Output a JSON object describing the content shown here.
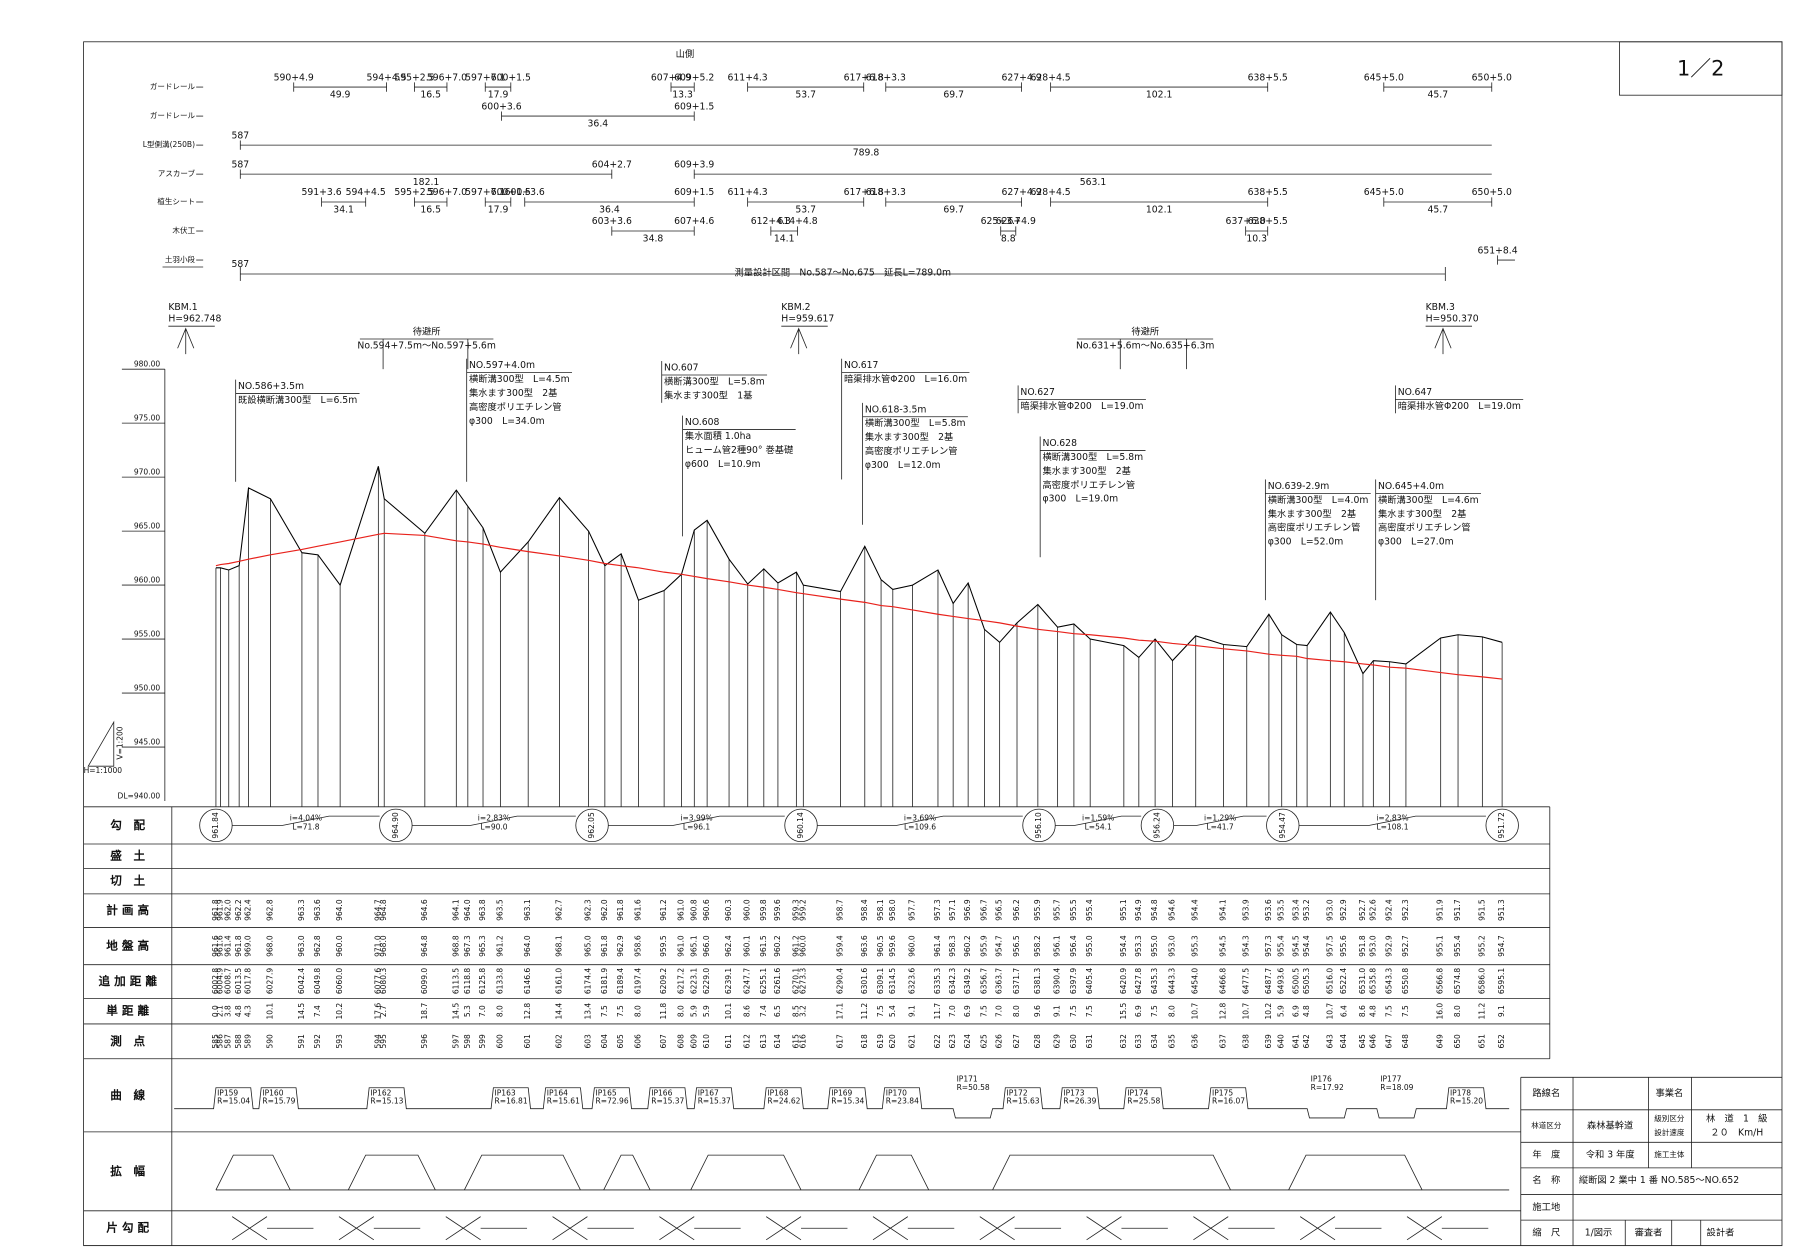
{
  "sheet": "1／2",
  "top_rows": {
    "side_label": "山側",
    "rows": [
      {
        "label": "ガードレール",
        "segments": [
          {
            "start": "590+4.9",
            "end": "594+4.5",
            "length": 49.9
          },
          {
            "start": "595+2.5",
            "end": "596+7.0",
            "length": 16.5
          },
          {
            "start": "597+7.1",
            "end": "600+1.5",
            "length": 17.9
          },
          {
            "start": "607+4.9",
            "end": "609+5.2",
            "length": 13.3
          },
          {
            "start": "611+4.3",
            "end": "617+6.8",
            "length": 53.7
          },
          {
            "start": "618+3.3",
            "end": "627+4.9",
            "length": 69.7
          },
          {
            "start": "628+4.5",
            "end": "638+5.5",
            "length": 102.1
          },
          {
            "start": "645+5.0",
            "end": "650+5.0",
            "length": 45.7
          }
        ]
      },
      {
        "label": "ガードレール",
        "segments": [
          {
            "start": "600+3.6",
            "end": "609+1.5",
            "length": 36.4
          }
        ]
      },
      {
        "label": "L型側溝(250B)",
        "segments": [
          {
            "start": "587",
            "length": 789.8
          }
        ]
      },
      {
        "label": "アスカーブ",
        "segments": [
          {
            "start": "587",
            "end": "604+2.7",
            "length": 182.1
          },
          {
            "start": "609+3.9",
            "length": 563.1
          }
        ]
      },
      {
        "label": "植生シート",
        "segments": [
          {
            "start": "591+3.6",
            "end": "594+4.5",
            "length": 34.1
          },
          {
            "start": "595+2.5",
            "end": "596+7.0",
            "length": 16.5
          },
          {
            "start": "597+7.1",
            "end": "600+1.5",
            "length": 17.9
          },
          {
            "start": "600+3.6",
            "end": "609+1.5",
            "length": 36.4
          },
          {
            "start": "611+4.3",
            "end": "617+6.8",
            "length": 53.7
          },
          {
            "start": "618+3.3",
            "end": "627+4.9",
            "length": 69.7
          },
          {
            "start": "628+4.5",
            "end": "638+5.5",
            "length": 102.1
          },
          {
            "start": "645+5.0",
            "end": "650+5.0",
            "length": 45.7
          }
        ]
      },
      {
        "label": "木伏工",
        "segments": [
          {
            "start": "603+3.6",
            "end": "607+4.6",
            "length": 34.8
          },
          {
            "start": "612+4.3",
            "end": "614+4.8",
            "length": 14.1
          },
          {
            "start": "625+3.7",
            "end": "626+4.9",
            "length": 8.8
          },
          {
            "start": "637+6.0",
            "end": "638+5.5",
            "length": 10.3
          }
        ]
      },
      {
        "label": "土羽小段",
        "segments": [
          {
            "start": "651+8.4"
          }
        ]
      }
    ],
    "survey": {
      "start": "587",
      "text": "測量設計区間　No.587～No.675　延長L=789.0m"
    }
  },
  "benchmarks": [
    {
      "name": "KBM.1",
      "height": "H=962.748"
    },
    {
      "name": "KBM.2",
      "height": "H=959.617"
    },
    {
      "name": "KBM.3",
      "height": "H=950.370"
    }
  ],
  "turnouts": [
    {
      "title": "待避所",
      "range": "No.594+7.5m～No.597+5.6m"
    },
    {
      "title": "待避所",
      "range": "No.631+5.6m～No.635+6.3m"
    }
  ],
  "annotations": [
    {
      "lines": [
        "NO.586+3.5m",
        "既設横断溝300型　L=6.5m"
      ]
    },
    {
      "lines": [
        "NO.597+4.0m",
        "横断溝300型　L=4.5m",
        "集水ます300型　2基",
        "高密度ポリエチレン管",
        "φ300　L=34.0m"
      ]
    },
    {
      "lines": [
        "NO.607",
        "横断溝300型　L=5.8m",
        "集水ます300型　1基"
      ]
    },
    {
      "lines": [
        "NO.608",
        "集水面積 1.0ha",
        "ヒューム管2種90° 巻基礎",
        "φ600　L=10.9m"
      ]
    },
    {
      "lines": [
        "NO.617",
        "暗渠排水管Φ200　L=16.0m"
      ]
    },
    {
      "lines": [
        "NO.618-3.5m",
        "横断溝300型　L=5.8m",
        "集水ます300型　2基",
        "高密度ポリエチレン管",
        "φ300　L=12.0m"
      ]
    },
    {
      "lines": [
        "NO.627",
        "暗渠排水管Φ200　L=19.0m"
      ]
    },
    {
      "lines": [
        "NO.628",
        "横断溝300型　L=5.8m",
        "集水ます300型　2基",
        "高密度ポリエチレン管",
        "φ300　L=19.0m"
      ]
    },
    {
      "lines": [
        "NO.639-2.9m",
        "横断溝300型　L=4.0m",
        "集水ます300型　2基",
        "高密度ポリエチレン管",
        "φ300　L=52.0m"
      ]
    },
    {
      "lines": [
        "NO.645+4.0m",
        "横断溝300型　L=4.6m",
        "集水ます300型　2基",
        "高密度ポリエチレン管",
        "φ300　L=27.0m"
      ]
    },
    {
      "lines": [
        "NO.647",
        "暗渠排水管Φ200　L=19.0m"
      ]
    }
  ],
  "profile": {
    "ylim": [
      940,
      980
    ],
    "yticks": [
      {
        "value": 980,
        "label": "980.00"
      },
      {
        "value": 975,
        "label": "975.00"
      },
      {
        "value": 970,
        "label": "970.00"
      },
      {
        "value": 965,
        "label": "965.00"
      },
      {
        "value": 960,
        "label": "960.00"
      },
      {
        "value": 955,
        "label": "955.00"
      },
      {
        "value": 950,
        "label": "950.00"
      },
      {
        "value": 945,
        "label": "945.00"
      }
    ],
    "datum": "DL=940.00",
    "v_scale": "V=1:200",
    "h_scale": "H=1:1000",
    "station": [
      585,
      586,
      587,
      588,
      589,
      590,
      591,
      592,
      593,
      594,
      595,
      596,
      597,
      598,
      599,
      600,
      601,
      602,
      603,
      604,
      605,
      606,
      607,
      608,
      609,
      610,
      611,
      612,
      613,
      614,
      615,
      616,
      617,
      618,
      619,
      620,
      621,
      622,
      623,
      624,
      625,
      626,
      627,
      628,
      629,
      630,
      631,
      632,
      633,
      634,
      635,
      636,
      637,
      638,
      639,
      640,
      641,
      642,
      643,
      644,
      645,
      646,
      647,
      648,
      649,
      650,
      651,
      652
    ],
    "single": [
      0,
      2.1,
      3.8,
      4.8,
      4.3,
      10.1,
      14.5,
      7.4,
      10.2,
      17.6,
      2.7,
      18.7,
      14.5,
      5.3,
      7.0,
      8.0,
      12.8,
      14.4,
      13.4,
      7.5,
      7.5,
      8.0,
      11.8,
      8.0,
      5.9,
      5.9,
      10.1,
      8.6,
      7.4,
      6.5,
      8.5,
      3.2,
      17.1,
      11.2,
      7.5,
      5.4,
      9.1,
      11.7,
      7.0,
      6.9,
      7.5,
      7.0,
      8.0,
      9.6,
      9.1,
      7.5,
      7.5,
      15.5,
      6.9,
      7.5,
      8.0,
      10.7,
      12.8,
      10.7,
      10.2,
      5.9,
      6.9,
      4.8,
      10.7,
      6.4,
      8.6,
      4.8,
      7.5,
      7.5,
      16.0,
      8.0,
      11.2,
      9.1
    ],
    "distance": [
      6002.8,
      6004.9,
      6008.7,
      6013.5,
      6017.8,
      6027.9,
      6042.4,
      6049.8,
      6060.0,
      6077.6,
      6080.3,
      6099.0,
      6113.5,
      6118.8,
      6125.8,
      6133.8,
      6146.6,
      6161.0,
      6174.4,
      6181.9,
      6189.4,
      6197.4,
      6209.2,
      6217.2,
      6223.1,
      6229.0,
      6239.1,
      6247.7,
      6255.1,
      6261.6,
      6270.1,
      6273.3,
      6290.4,
      6301.6,
      6309.1,
      6314.5,
      6323.6,
      6335.3,
      6342.3,
      6349.2,
      6356.7,
      6363.7,
      6371.7,
      6381.3,
      6390.4,
      6397.9,
      6405.4,
      6420.9,
      6427.8,
      6435.3,
      6443.3,
      6454.0,
      6466.8,
      6477.5,
      6487.7,
      6493.6,
      6500.5,
      6505.3,
      6516.0,
      6522.4,
      6531.0,
      6535.8,
      6543.3,
      6550.8,
      6566.8,
      6574.8,
      6586.0,
      6595.1
    ],
    "ground": [
      961.6,
      961.6,
      961.4,
      961.8,
      969.0,
      968.0,
      963.0,
      962.8,
      960.0,
      971.0,
      968.0,
      964.8,
      968.8,
      967.3,
      965.3,
      961.2,
      964.0,
      968.1,
      965.0,
      961.8,
      962.9,
      958.6,
      959.5,
      961.0,
      965.1,
      966.0,
      962.4,
      960.1,
      961.5,
      960.2,
      961.2,
      960.0,
      959.4,
      963.6,
      960.5,
      959.6,
      960.0,
      961.4,
      958.3,
      960.2,
      955.9,
      954.7,
      956.5,
      958.2,
      956.1,
      956.4,
      955.0,
      954.4,
      953.3,
      955.0,
      953.0,
      955.3,
      954.5,
      954.3,
      957.3,
      955.4,
      954.5,
      954.4,
      957.5,
      955.6,
      951.8,
      953.0,
      952.9,
      952.7,
      955.1,
      955.4,
      955.2,
      954.7
    ],
    "plan": [
      961.8,
      961.9,
      962.0,
      962.2,
      962.4,
      962.8,
      963.3,
      963.6,
      964.0,
      964.7,
      964.8,
      964.6,
      964.1,
      964.0,
      963.8,
      963.5,
      963.1,
      962.7,
      962.3,
      962.0,
      961.8,
      961.6,
      961.2,
      961.0,
      960.8,
      960.6,
      960.3,
      960.0,
      959.8,
      959.6,
      959.3,
      959.2,
      958.7,
      958.4,
      958.1,
      958.0,
      957.7,
      957.3,
      957.1,
      956.9,
      956.7,
      956.5,
      956.2,
      955.9,
      955.7,
      955.5,
      955.4,
      955.1,
      954.9,
      954.8,
      954.6,
      954.4,
      954.1,
      953.9,
      953.6,
      953.5,
      953.4,
      953.2,
      953.0,
      952.9,
      952.7,
      952.6,
      952.4,
      952.3,
      951.9,
      951.7,
      951.5,
      951.3
    ],
    "grade_points": [
      961.84,
      964.9,
      962.05,
      960.14,
      956.1,
      956.24,
      954.47,
      951.72
    ],
    "grades": [
      {
        "i": "i=4.04%",
        "L": "L=71.8"
      },
      {
        "i": "i=2.83%",
        "L": "L=90.0"
      },
      {
        "i": "i=3.99%",
        "L": "L=96.1"
      },
      {
        "i": "i=3.69%",
        "L": "L=109.6"
      },
      {
        "i": "i=1.59%",
        "L": "L=54.1"
      },
      {
        "i": "i=1.29%",
        "L": "L=41.7"
      },
      {
        "i": "i=2.83%",
        "L": "L=108.1"
      }
    ]
  },
  "curves": [
    {
      "ip": "IP159",
      "r": "R=15.04"
    },
    {
      "ip": "IP160",
      "r": "R=15.79"
    },
    {
      "ip": "IP162",
      "r": "R=15.13"
    },
    {
      "ip": "IP163",
      "r": "R=16.81"
    },
    {
      "ip": "IP164",
      "r": "R=15.61"
    },
    {
      "ip": "IP165",
      "r": "R=72.96"
    },
    {
      "ip": "IP166",
      "r": "R=15.37"
    },
    {
      "ip": "IP167",
      "r": "R=15.37"
    },
    {
      "ip": "IP168",
      "r": "R=24.62"
    },
    {
      "ip": "IP169",
      "r": "R=15.34"
    },
    {
      "ip": "IP170",
      "r": "R=23.84"
    },
    {
      "ip": "IP171",
      "r": "R=50.58"
    },
    {
      "ip": "IP172",
      "r": "R=15.63"
    },
    {
      "ip": "IP173",
      "r": "R=26.39"
    },
    {
      "ip": "IP174",
      "r": "R=25.58"
    },
    {
      "ip": "IP175",
      "r": "R=16.07"
    },
    {
      "ip": "IP176",
      "r": "R=17.92"
    },
    {
      "ip": "IP177",
      "r": "R=18.09"
    },
    {
      "ip": "IP178",
      "r": "R=15.20"
    }
  ],
  "row_headers": [
    "勾　配",
    "盛　土",
    "切　土",
    "計 画 高",
    "地 盤 高",
    "追 加 距 離",
    "単 距 離",
    "測　点",
    "曲　線",
    "拡　幅",
    "片 勾 配"
  ],
  "title_block": {
    "route_label": "路線名",
    "project_label": "事業名",
    "class_label": "林道区分",
    "class_value": "森林基幹道",
    "grade_label": "級別区分",
    "grade_value": "林　道　1　級",
    "speed_label": "設計速度",
    "speed_value": "２０　Km/H",
    "year_label": "年　度",
    "year_value": "令和 3 年度",
    "owner_label": "施工主体",
    "name_label": "名　称",
    "name_value": "縦断図 2 業中 1 番 NO.585～NO.652",
    "site_label": "施工地",
    "scale_label": "縮　尺",
    "scale_value": "1/図示",
    "checker_label": "審査者",
    "designer_label": "設計者"
  }
}
